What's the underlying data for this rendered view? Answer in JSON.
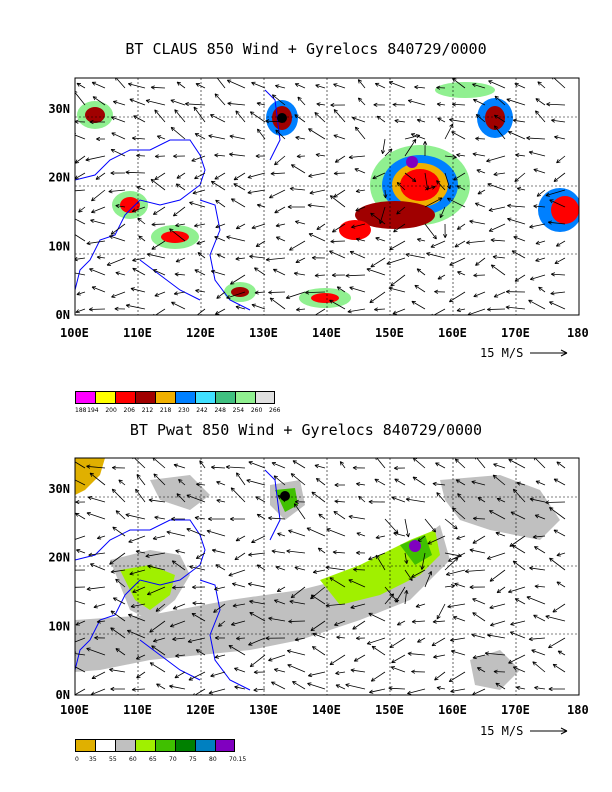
{
  "panels": [
    {
      "title": "BT CLAUS 850 Wind + Gyrelocs 840729/0000",
      "x_ticks": [
        "100E",
        "110E",
        "120E",
        "130E",
        "140E",
        "150E",
        "160E",
        "170E",
        "180"
      ],
      "y_ticks": [
        "0N",
        "10N",
        "20N",
        "30N"
      ],
      "vector_scale_label": "15 M/S",
      "legend": {
        "labels": [
          "188",
          "194",
          "200",
          "206",
          "212",
          "218",
          "230",
          "242",
          "248",
          "254",
          "260",
          "266"
        ],
        "colors": [
          "#ff00ff",
          "#ffff00",
          "#ff0000",
          "#a00000",
          "#f0b000",
          "#0080ff",
          "#40e0ff",
          "#40c080",
          "#90f090",
          "#e0e0e0"
        ]
      }
    },
    {
      "title": "BT Pwat 850 Wind + Gyrelocs 840729/0000",
      "x_ticks": [
        "100E",
        "110E",
        "120E",
        "130E",
        "140E",
        "150E",
        "160E",
        "170E",
        "180"
      ],
      "y_ticks": [
        "0N",
        "10N",
        "20N",
        "30N"
      ],
      "vector_scale_label": "15 M/S",
      "legend": {
        "labels": [
          "0",
          "35",
          "55",
          "60",
          "65",
          "70",
          "75",
          "80",
          "70.15"
        ],
        "colors": [
          "#e0b000",
          "#ffffff",
          "#c0c0c0",
          "#a0f000",
          "#40c000",
          "#008000",
          "#0080c0",
          "#8000c0"
        ]
      }
    }
  ]
}
